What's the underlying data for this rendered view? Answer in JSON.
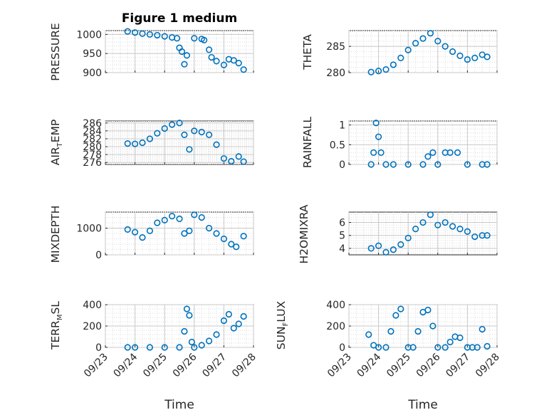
{
  "figure_title": "Figure 1 medium",
  "xlabel": "Time",
  "xticks": [
    "09/23",
    "09/24",
    "09/25",
    "09/26",
    "09/27",
    "09/28"
  ],
  "colors": {
    "marker": "#0072BD",
    "grid": "#dcdcdc",
    "axis": "#262626"
  },
  "labels": {
    "pressure": "PRESSURE",
    "theta": "THETA",
    "air_temp": {
      "base": "AIR",
      "sub": "T",
      "rest": "EMP"
    },
    "rainfall": "RAINFALL",
    "mixdepth": "MIXDEPTH",
    "h2omixra": "H2OMIXRA",
    "terr_msl": {
      "base": "TERR",
      "sub": "M",
      "rest": "SL"
    },
    "sun_flux": {
      "base": "SUN",
      "sub": "F",
      "rest": "LUX"
    }
  },
  "chart_data": [
    {
      "type": "scatter",
      "id": "pressure",
      "ylabel": "PRESSURE",
      "ylim": [
        900,
        1010
      ],
      "yticks": [
        900,
        950,
        1000
      ],
      "grid": true,
      "x": [
        "09/23 18:00",
        "09/24 00:00",
        "09/24 06:00",
        "09/24 12:00",
        "09/24 18:00",
        "09/25 00:00",
        "09/25 06:00",
        "09/25 10:00",
        "09/25 12:00",
        "09/25 14:00",
        "09/25 16:00",
        "09/25 18:00",
        "09/26 00:00",
        "09/26 06:00",
        "09/26 08:00",
        "09/26 12:00",
        "09/26 14:00",
        "09/26 18:00",
        "09/27 00:00",
        "09/27 04:00",
        "09/27 08:00",
        "09/27 12:00",
        "09/27 16:00"
      ],
      "y": [
        1008,
        1005,
        1002,
        1000,
        998,
        995,
        992,
        990,
        965,
        955,
        922,
        945,
        990,
        988,
        985,
        960,
        940,
        930,
        920,
        935,
        932,
        925,
        908
      ]
    },
    {
      "type": "scatter",
      "id": "theta",
      "ylabel": "THETA",
      "ylim": [
        280,
        288
      ],
      "yticks": [
        280,
        285
      ],
      "grid": true,
      "x": [
        "09/23 18:00",
        "09/24 00:00",
        "09/24 06:00",
        "09/24 12:00",
        "09/24 18:00",
        "09/25 00:00",
        "09/25 06:00",
        "09/25 12:00",
        "09/25 18:00",
        "09/26 00:00",
        "09/26 06:00",
        "09/26 12:00",
        "09/26 18:00",
        "09/27 00:00",
        "09/27 06:00",
        "09/27 12:00",
        "09/27 16:00"
      ],
      "y": [
        280.1,
        280.3,
        280.6,
        281.5,
        282.8,
        284.3,
        285.6,
        286.5,
        287.5,
        286.0,
        285.0,
        284.0,
        283.2,
        282.5,
        282.8,
        283.4,
        283.0
      ]
    },
    {
      "type": "scatter",
      "id": "air_temp",
      "ylabel": "AIR_TEMP",
      "ylim": [
        275.5,
        286.5
      ],
      "yticks": [
        276,
        278,
        280,
        282,
        284,
        286
      ],
      "grid": true,
      "x": [
        "09/23 18:00",
        "09/24 00:00",
        "09/24 06:00",
        "09/24 12:00",
        "09/24 18:00",
        "09/25 00:00",
        "09/25 06:00",
        "09/25 12:00",
        "09/25 16:00",
        "09/25 20:00",
        "09/26 00:00",
        "09/26 06:00",
        "09/26 12:00",
        "09/26 18:00",
        "09/27 00:00",
        "09/27 06:00",
        "09/27 12:00",
        "09/27 16:00"
      ],
      "y": [
        280.8,
        280.7,
        281.0,
        282.0,
        283.4,
        284.6,
        285.6,
        286.0,
        283.0,
        279.3,
        284.0,
        283.7,
        283.0,
        280.5,
        277.0,
        276.3,
        277.5,
        276.2
      ]
    },
    {
      "type": "scatter",
      "id": "rainfall",
      "ylabel": "RAINFALL",
      "ylim": [
        0,
        1.1
      ],
      "yticks": [
        0,
        0.5,
        1
      ],
      "grid": true,
      "x": [
        "09/23 18:00",
        "09/23 20:00",
        "09/23 22:00",
        "09/24 00:00",
        "09/24 02:00",
        "09/24 06:00",
        "09/24 12:00",
        "09/25 00:00",
        "09/25 12:00",
        "09/25 16:00",
        "09/25 20:00",
        "09/26 00:00",
        "09/26 06:00",
        "09/26 10:00",
        "09/26 16:00",
        "09/27 00:00",
        "09/27 12:00",
        "09/27 16:00"
      ],
      "y": [
        0,
        0.3,
        1.05,
        0.7,
        0.3,
        0,
        0,
        0,
        0,
        0.2,
        0.3,
        0,
        0.3,
        0.3,
        0.3,
        0,
        0,
        0
      ]
    },
    {
      "type": "scatter",
      "id": "mixdepth",
      "ylabel": "MIXDEPTH",
      "ylim": [
        0,
        1600
      ],
      "yticks": [
        0,
        1000
      ],
      "grid": true,
      "x": [
        "09/23 18:00",
        "09/24 00:00",
        "09/24 06:00",
        "09/24 12:00",
        "09/24 18:00",
        "09/25 00:00",
        "09/25 06:00",
        "09/25 12:00",
        "09/25 16:00",
        "09/25 20:00",
        "09/26 00:00",
        "09/26 06:00",
        "09/26 12:00",
        "09/26 18:00",
        "09/27 00:00",
        "09/27 06:00",
        "09/27 10:00",
        "09/27 16:00"
      ],
      "y": [
        950,
        850,
        650,
        900,
        1200,
        1300,
        1450,
        1350,
        800,
        900,
        1500,
        1400,
        1000,
        800,
        600,
        400,
        300,
        700
      ]
    },
    {
      "type": "scatter",
      "id": "h2omixra",
      "ylabel": "H2OMIXRA",
      "ylim": [
        3.5,
        6.8
      ],
      "yticks": [
        4,
        5,
        6
      ],
      "grid": true,
      "x": [
        "09/23 18:00",
        "09/24 00:00",
        "09/24 06:00",
        "09/24 12:00",
        "09/24 18:00",
        "09/25 00:00",
        "09/25 06:00",
        "09/25 12:00",
        "09/25 18:00",
        "09/26 00:00",
        "09/26 06:00",
        "09/26 12:00",
        "09/26 18:00",
        "09/27 00:00",
        "09/27 06:00",
        "09/27 12:00",
        "09/27 16:00"
      ],
      "y": [
        4.0,
        4.2,
        3.7,
        3.9,
        4.3,
        4.8,
        5.5,
        6.0,
        6.6,
        5.8,
        6.0,
        5.7,
        5.5,
        5.3,
        4.9,
        5.0,
        5.0
      ]
    },
    {
      "type": "scatter",
      "id": "terr_msl",
      "ylabel": "TERR_MSL",
      "ylim": [
        0,
        400
      ],
      "yticks": [
        0,
        200,
        400
      ],
      "grid": true,
      "x": [
        "09/23 18:00",
        "09/24 00:00",
        "09/24 12:00",
        "09/25 00:00",
        "09/25 12:00",
        "09/25 16:00",
        "09/25 18:00",
        "09/25 20:00",
        "09/25 22:00",
        "09/26 00:00",
        "09/26 06:00",
        "09/26 12:00",
        "09/26 18:00",
        "09/27 00:00",
        "09/27 04:00",
        "09/27 08:00",
        "09/27 12:00",
        "09/27 16:00"
      ],
      "y": [
        0,
        0,
        0,
        0,
        0,
        150,
        360,
        300,
        50,
        0,
        20,
        60,
        120,
        250,
        310,
        180,
        220,
        290
      ]
    },
    {
      "type": "scatter",
      "id": "sun_flux",
      "ylabel": "SUN_FLUX",
      "ylim": [
        0,
        400
      ],
      "yticks": [
        0,
        200,
        400
      ],
      "grid": true,
      "x": [
        "09/23 16:00",
        "09/23 20:00",
        "09/24 00:00",
        "09/24 06:00",
        "09/24 10:00",
        "09/24 14:00",
        "09/24 18:00",
        "09/25 00:00",
        "09/25 04:00",
        "09/25 08:00",
        "09/25 12:00",
        "09/25 16:00",
        "09/25 20:00",
        "09/26 00:00",
        "09/26 06:00",
        "09/26 10:00",
        "09/26 14:00",
        "09/26 18:00",
        "09/27 00:00",
        "09/27 04:00",
        "09/27 08:00",
        "09/27 12:00",
        "09/27 16:00"
      ],
      "y": [
        120,
        20,
        0,
        0,
        150,
        300,
        360,
        0,
        0,
        150,
        330,
        350,
        200,
        0,
        0,
        50,
        100,
        90,
        0,
        0,
        0,
        170,
        10
      ]
    }
  ]
}
